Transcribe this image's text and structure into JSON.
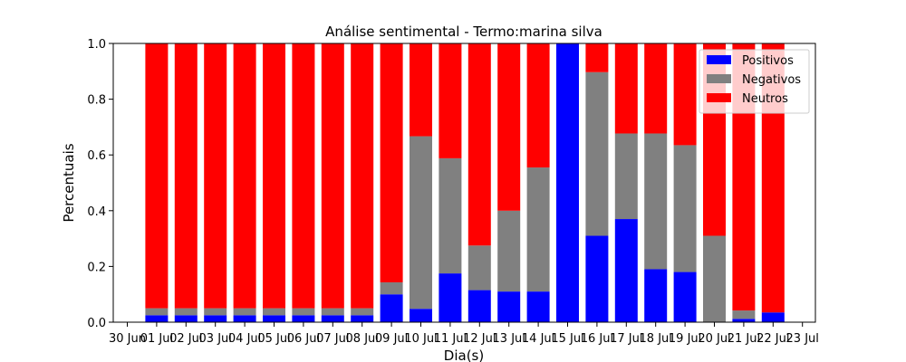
{
  "chart_data": {
    "type": "bar",
    "stacked": true,
    "title": "Análise sentimental - Termo:marina silva",
    "xlabel": "Dia(s)",
    "ylabel": "Percentuais",
    "ylim": [
      0,
      1.0
    ],
    "yticks": [
      "0.0",
      "0.2",
      "0.4",
      "0.6",
      "0.8",
      "1.0"
    ],
    "xticks": [
      "30 Jun",
      "01 Jul",
      "02 Jul",
      "03 Jul",
      "04 Jul",
      "05 Jul",
      "06 Jul",
      "07 Jul",
      "08 Jul",
      "09 Jul",
      "10 Jul",
      "11 Jul",
      "12 Jul",
      "13 Jul",
      "14 Jul",
      "15 Jul",
      "16 Jul",
      "17 Jul",
      "18 Jul",
      "19 Jul",
      "20 Jul",
      "21 Jul",
      "22 Jul",
      "23 Jul"
    ],
    "categories": [
      "01 Jul",
      "02 Jul",
      "03 Jul",
      "04 Jul",
      "05 Jul",
      "06 Jul",
      "07 Jul",
      "08 Jul",
      "09 Jul",
      "10 Jul",
      "11 Jul",
      "12 Jul",
      "13 Jul",
      "14 Jul",
      "15 Jul",
      "16 Jul",
      "17 Jul",
      "18 Jul",
      "19 Jul",
      "20 Jul",
      "21 Jul",
      "22 Jul"
    ],
    "grid": false,
    "legend_position": "top-right",
    "series": [
      {
        "name": "Positivos",
        "color": "#0000ff",
        "values": [
          0.025,
          0.025,
          0.025,
          0.025,
          0.025,
          0.025,
          0.025,
          0.025,
          0.1,
          0.048,
          0.175,
          0.115,
          0.11,
          0.11,
          1.0,
          0.31,
          0.37,
          0.19,
          0.18,
          0.0,
          0.012,
          0.035
        ]
      },
      {
        "name": "Negativos",
        "color": "#808080",
        "values": [
          0.025,
          0.025,
          0.025,
          0.025,
          0.025,
          0.025,
          0.025,
          0.025,
          0.043,
          0.619,
          0.413,
          0.16,
          0.29,
          0.445,
          0.0,
          0.587,
          0.307,
          0.487,
          0.455,
          0.31,
          0.03,
          0.0
        ]
      },
      {
        "name": "Neutros",
        "color": "#ff0000",
        "values": [
          0.95,
          0.95,
          0.95,
          0.95,
          0.95,
          0.95,
          0.95,
          0.95,
          0.857,
          0.333,
          0.412,
          0.725,
          0.6,
          0.445,
          0.0,
          0.103,
          0.323,
          0.323,
          0.365,
          0.69,
          0.958,
          0.965
        ]
      }
    ]
  }
}
